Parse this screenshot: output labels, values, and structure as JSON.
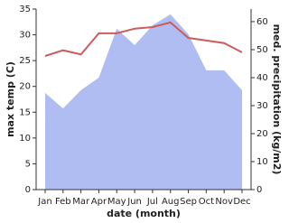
{
  "chart_data": {
    "type": "line-area",
    "x_label": "date (month)",
    "y_label": "max temp (C)",
    "y2_label": "med. precipitation (kg/m2)",
    "categories": [
      "Jan",
      "Feb",
      "Mar",
      "Apr",
      "May",
      "Jun",
      "Jul",
      "Aug",
      "Sep",
      "Oct",
      "Nov",
      "Dec"
    ],
    "series": [
      {
        "color": "#cd5c5c",
        "kind": "line",
        "values": [
          25.9,
          27,
          26.2,
          30.3,
          30.3,
          31.2,
          31.5,
          32.4,
          29.4,
          28.9,
          28.4,
          26.6
        ]
      },
      {
        "color": "#b0bdf2",
        "kind": "area",
        "axis": "y2",
        "values": [
          34.5,
          29,
          35.5,
          40,
          57.5,
          51.6,
          58.7,
          62.6,
          55.5,
          42.6,
          42.6,
          35.5
        ]
      }
    ],
    "ylim": [
      0,
      35
    ],
    "yticks": [
      0,
      5,
      10,
      15,
      20,
      25,
      30,
      35
    ],
    "y2lim": [
      0,
      64.5
    ],
    "y2ticks": [
      0,
      10,
      20,
      30,
      40,
      50,
      60
    ]
  }
}
